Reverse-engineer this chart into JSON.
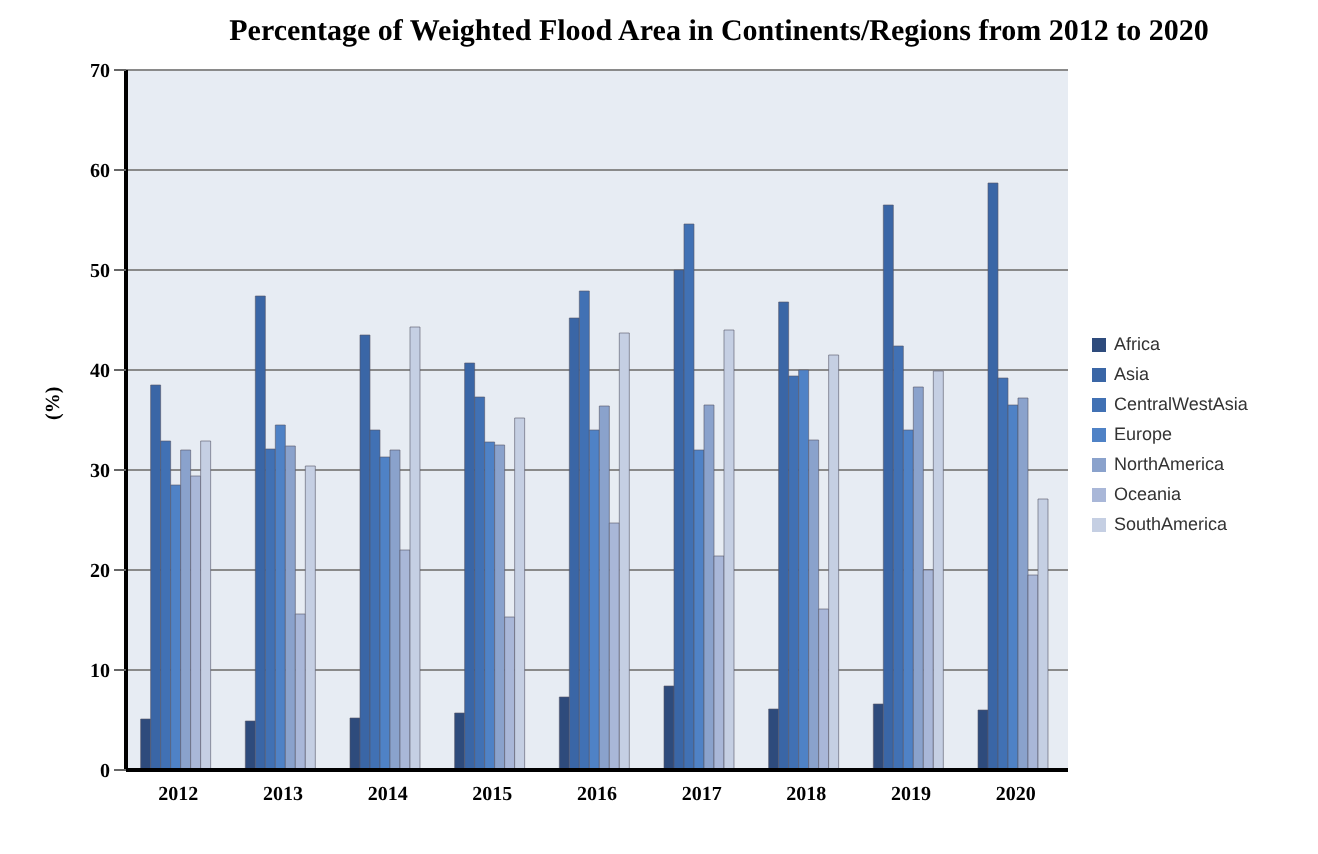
{
  "chart_data": {
    "type": "bar",
    "title": "Percentage of Weighted Flood Area in Continents/Regions from 2012 to 2020",
    "ylabel": "(%)",
    "categories": [
      "2012",
      "2013",
      "2014",
      "2015",
      "2016",
      "2017",
      "2018",
      "2019",
      "2020"
    ],
    "series": [
      {
        "name": "Africa",
        "color": "#2e4b7c",
        "values": [
          5.1,
          4.9,
          5.2,
          5.7,
          7.3,
          8.4,
          6.1,
          6.6,
          6.0
        ]
      },
      {
        "name": "Asia",
        "color": "#3a66a6",
        "values": [
          38.5,
          47.4,
          43.5,
          40.7,
          45.2,
          50.0,
          46.8,
          56.5,
          58.7
        ]
      },
      {
        "name": "CentralWestAsia",
        "color": "#4171b4",
        "values": [
          32.9,
          32.1,
          34.0,
          37.3,
          47.9,
          54.6,
          39.4,
          42.4,
          39.2
        ]
      },
      {
        "name": "Europe",
        "color": "#4f82c6",
        "values": [
          28.5,
          34.5,
          31.3,
          32.8,
          34.0,
          32.0,
          40.0,
          34.0,
          36.5
        ]
      },
      {
        "name": "NorthAmerica",
        "color": "#8aa2cc",
        "values": [
          32.0,
          32.4,
          32.0,
          32.5,
          36.4,
          36.5,
          33.0,
          38.3,
          37.2
        ]
      },
      {
        "name": "Oceania",
        "color": "#a9b7d8",
        "values": [
          29.4,
          15.6,
          22.0,
          15.3,
          24.7,
          21.4,
          16.1,
          20.0,
          19.5
        ]
      },
      {
        "name": "SouthAmerica",
        "color": "#c5cfe3",
        "values": [
          32.9,
          30.4,
          44.3,
          35.2,
          43.7,
          44.0,
          41.5,
          39.9,
          27.1
        ]
      }
    ],
    "ylim": [
      0,
      70
    ],
    "yticks": [
      0,
      10,
      20,
      30,
      40,
      50,
      60,
      70
    ],
    "grid": "y",
    "legend": "right"
  }
}
